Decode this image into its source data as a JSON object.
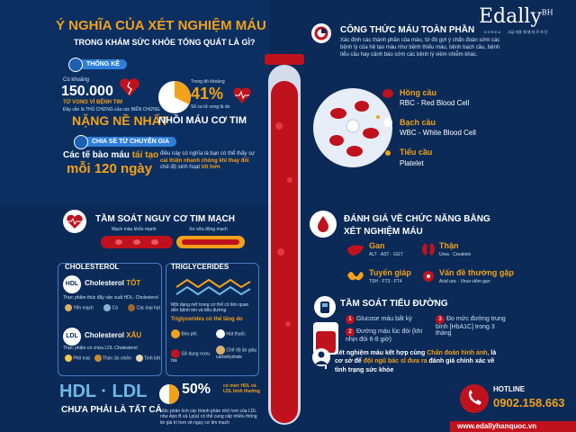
{
  "brand": {
    "name": "Edally",
    "superscript": "BH",
    "sub": "KOREA",
    "sub2": "고급 미용 체 재 미 르 자 단"
  },
  "header": {
    "title_line1": "Ý NGHĨA CỦA XÉT NGHIỆM MÁU",
    "title_line2": "TRONG KHÁM SỨC KHỎE TỔNG QUÁT LÀ GÌ?"
  },
  "stats": {
    "tag": "THỐNG KÊ",
    "left_pre": "Có khoảng",
    "left_number": "150.000",
    "left_unit": "TỬ VONG VÌ BỆNH TIM",
    "left_note": "Đây vẫn là THỦ CHỨNG của các BIẾN CHỨNG",
    "left_big": "NẶNG NỀ NHẤT",
    "right_pre": "Trong đó khoảng",
    "right_number": "41%",
    "right_note": "Số ca tử vong là do",
    "right_big": "NHỒI MÁU CƠ TIM"
  },
  "expert": {
    "tag": "CHIA SẺ TỪ CHUYÊN GIA",
    "line1_pre": "Các tế bào máu",
    "line1_hl": "tái tạo",
    "line2": "mỗi 120 ngày",
    "desc_pre": "điều này có nghĩa là bạn có thể thấy sự",
    "desc_hl1": "cải thiện nhanh chóng khi thay đổi",
    "desc_mid": "chế độ sinh hoạt",
    "desc_hl2": "tốt hơn"
  },
  "blood_formula": {
    "title": "CÔNG THỨC MÁU TOÀN PHẦN",
    "desc": "Xác định các thành phần của máu, từ đó gợi ý chẩn đoán sớm các bệnh lý của hệ tạo máu như bệnh thiếu máu, bệnh bạch cầu, bệnh tiểu cầu hay cảnh báo sớm các bệnh lý viêm nhiễm khác.",
    "items": [
      {
        "name": "Hồng cầu",
        "desc": "RBC - Red Blood Cell"
      },
      {
        "name": "Bạch cầu",
        "desc": "WBC - White Blood Cell"
      },
      {
        "name": "Tiểu cầu",
        "desc": "Platelet"
      }
    ]
  },
  "heart_risk": {
    "title": "TẦM SOÁT NGUY CƠ TIM MẠCH",
    "healthy": "Mạch máu khỏe mạnh",
    "hardened": "Xơ vữa động mạch"
  },
  "cholesterol": {
    "title": "CHOLESTEROL",
    "hdl_label": "HDL",
    "hdl_text": "Cholesterol",
    "hdl_quality": "TỐT",
    "hdl_desc": "Thực phẩm thúc đẩy sản xuất HDL- Cholesterol",
    "hdl_foods": [
      "Yến mạch",
      "Cá",
      "Các loại hạt"
    ],
    "ldl_label": "LDL",
    "ldl_text": "Cholesterol",
    "ldl_quality": "XẤU",
    "ldl_desc": "Thực phẩm có chứa LDL-Cholesterol",
    "ldl_foods": [
      "Phô mai",
      "Thức ăn chiên",
      "Tinh bột"
    ]
  },
  "triglycerides": {
    "title": "TRIGLYCERIDES",
    "desc": "Một dạng mỡ trong cơ thể có liên quan đến bệnh tim và tiểu đường",
    "factors_title": "Triglycerides có thể tăng do",
    "factors": [
      "Béo phì",
      "Hút thuốc",
      "Sử dụng rượu bia",
      "Chế độ ăn giàu carbohydrate"
    ]
  },
  "hdl_ldl": {
    "big": "HDL · LDL",
    "sub": "CHƯA PHẢI LÀ TẤT CẢ",
    "percent": "50%",
    "percent_desc": "có mức HDL và LDL bình thường",
    "desc": "Việc phân tích các thành phần nhỏ hơn của LDL như Apo B và Lp(a) có thể cung cấp nhiều thông tin giá trị hơn về nguy cơ tim mạch"
  },
  "organ": {
    "title_line1": "ĐÁNH GIÁ VỀ CHỨC NĂNG BẰNG",
    "title_line2": "XÉT NGHIỆM MÁU",
    "items": [
      {
        "name": "Gan",
        "desc": "ALT · AST · GGT"
      },
      {
        "name": "Thận",
        "desc": "Urea · Creatinin"
      },
      {
        "name": "Tuyến giáp",
        "desc": "TSH · FT3 · FT4"
      },
      {
        "name": "Vấn đề thường gặp",
        "desc": "Acid uric · Virus viêm gan"
      }
    ]
  },
  "diabetes": {
    "title": "TẦM SOÁT TIỂU ĐƯỜNG",
    "items": [
      {
        "num": "1",
        "text": "Glucose máu bất kỳ"
      },
      {
        "num": "2",
        "text": "Đường máu lúc đói (khi nhịn đói 6-8 giờ)"
      },
      {
        "num": "3",
        "text": "Đo mức đường trung bình [HbA1C] trong 3 tháng"
      }
    ]
  },
  "conclusion": {
    "pre": "Xét nghiệm máu kết hợp cùng",
    "hl1": "Chẩn đoán hình ảnh,",
    "mid": "là cơ sở để",
    "hl2": "đội ngũ bác sĩ đưa ra",
    "end": "đánh giá chính xác về tình trạng sức khỏe"
  },
  "hotline": {
    "label": "HOTLINE",
    "number": "0902.158.663"
  },
  "website": "www.edallyhanquoc.vn",
  "colors": {
    "accent": "#f2a11a",
    "red": "#c0121d",
    "navy": "#0b2a57",
    "blue": "#2f7fd9"
  }
}
